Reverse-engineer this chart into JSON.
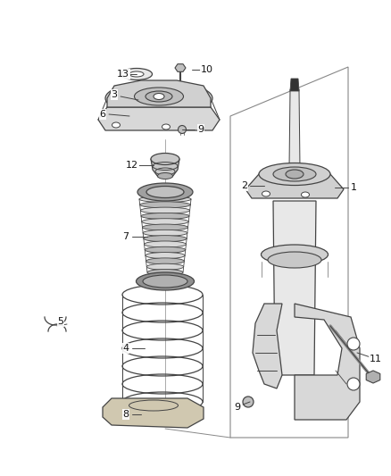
{
  "bg_color": "#ffffff",
  "line_color": "#444444",
  "line_width": 0.9,
  "label_color": "#111111",
  "label_fontsize": 7.5,
  "fig_width": 4.38,
  "fig_height": 5.33,
  "dpi": 100
}
